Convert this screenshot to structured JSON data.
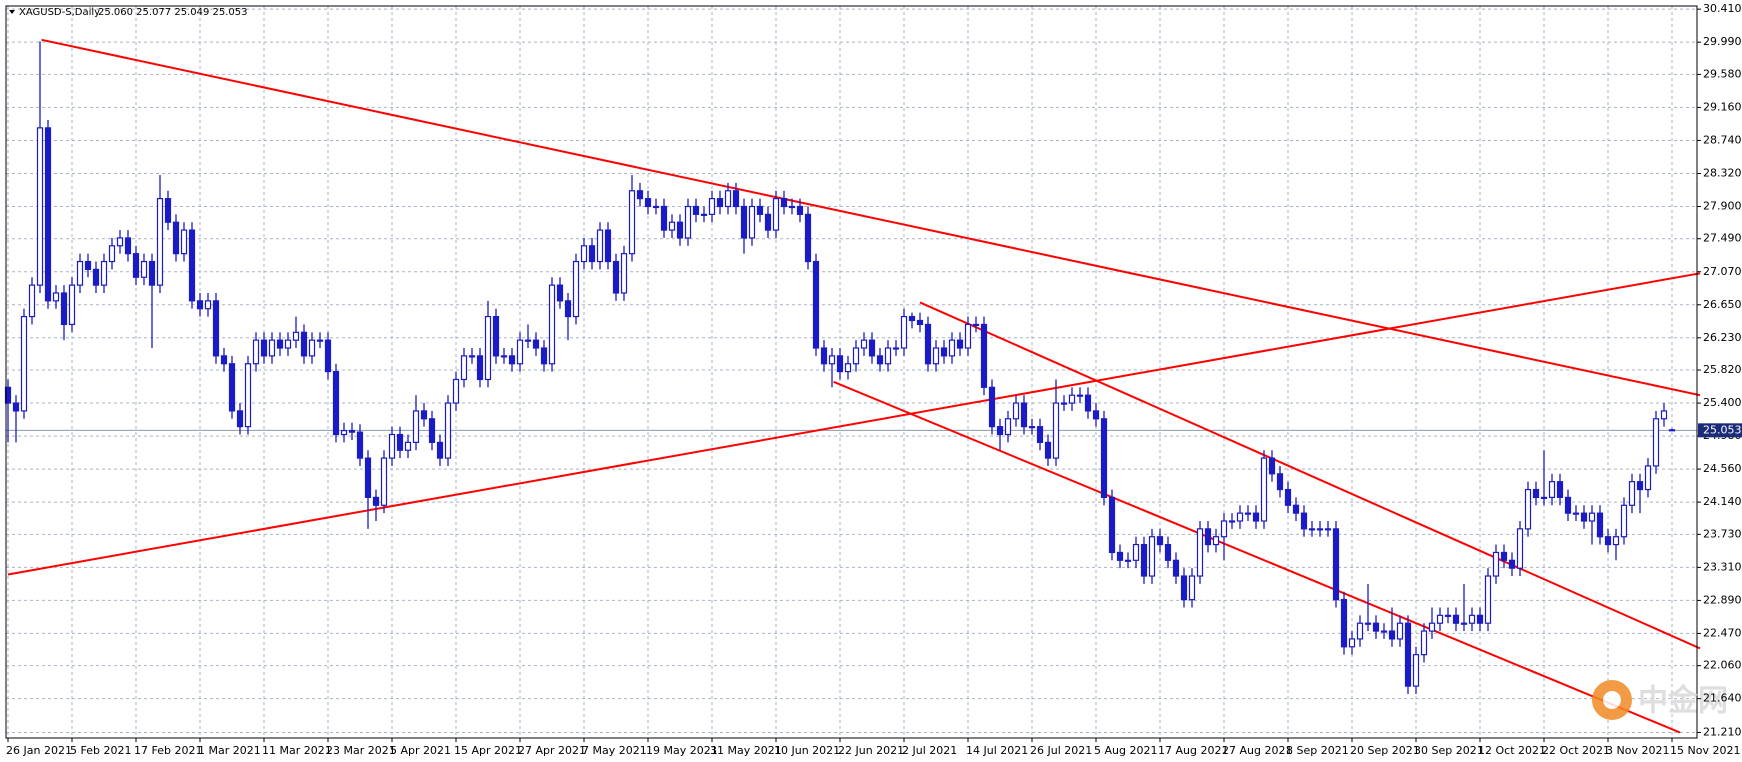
{
  "chart_data": {
    "type": "candlestick",
    "title": "XAGUSD-S,Daily",
    "subtitle": "25.060 25.077 25.049 25.053",
    "color": "#1b1bc6",
    "grid": true,
    "ylim": [
      21.14,
      30.45
    ],
    "yticks": [
      {
        "value": 30.41,
        "label": "30.410"
      },
      {
        "value": 29.99,
        "label": "29.990"
      },
      {
        "value": 29.58,
        "label": "29.580"
      },
      {
        "value": 29.16,
        "label": "29.160"
      },
      {
        "value": 28.74,
        "label": "28.740"
      },
      {
        "value": 28.32,
        "label": "28.320"
      },
      {
        "value": 27.9,
        "label": "27.900"
      },
      {
        "value": 27.49,
        "label": "27.490"
      },
      {
        "value": 27.07,
        "label": "27.070"
      },
      {
        "value": 26.65,
        "label": "26.650"
      },
      {
        "value": 26.23,
        "label": "26.230"
      },
      {
        "value": 25.82,
        "label": "25.820"
      },
      {
        "value": 25.4,
        "label": "25.400"
      },
      {
        "value": 24.98,
        "label": "24.980"
      },
      {
        "value": 24.56,
        "label": "24.560"
      },
      {
        "value": 24.14,
        "label": "24.140"
      },
      {
        "value": 23.73,
        "label": "23.730"
      },
      {
        "value": 23.31,
        "label": "23.310"
      },
      {
        "value": 22.89,
        "label": "22.890"
      },
      {
        "value": 22.47,
        "label": "22.470"
      },
      {
        "value": 22.06,
        "label": "22.060"
      },
      {
        "value": 21.64,
        "label": "21.640"
      },
      {
        "value": 21.21,
        "label": "21.210"
      }
    ],
    "last_price": {
      "value": 25.053,
      "label": "25.053",
      "color": "#8a9ab0"
    },
    "categories": [
      "26 Jan 2021",
      null,
      null,
      null,
      null,
      null,
      null,
      null,
      "5 Feb 2021",
      null,
      null,
      null,
      null,
      null,
      null,
      null,
      "17 Feb 2021",
      null,
      null,
      null,
      null,
      null,
      null,
      null,
      "1 Mar 2021",
      null,
      null,
      null,
      null,
      null,
      null,
      null,
      "11 Mar 2021",
      null,
      null,
      null,
      null,
      null,
      null,
      null,
      "23 Mar 2021",
      null,
      null,
      null,
      null,
      null,
      null,
      null,
      "5 Apr 2021",
      null,
      null,
      null,
      null,
      null,
      null,
      null,
      "15 Apr 2021",
      null,
      null,
      null,
      null,
      null,
      null,
      null,
      "27 Apr 2021",
      null,
      null,
      null,
      null,
      null,
      null,
      null,
      "7 May 2021",
      null,
      null,
      null,
      null,
      null,
      null,
      null,
      "19 May 2021",
      null,
      null,
      null,
      null,
      null,
      null,
      null,
      "31 May 2021",
      null,
      null,
      null,
      null,
      null,
      null,
      null,
      "10 Jun 2021",
      null,
      null,
      null,
      null,
      null,
      null,
      null,
      "22 Jun 2021",
      null,
      null,
      null,
      null,
      null,
      null,
      null,
      "2 Jul 2021",
      null,
      null,
      null,
      null,
      null,
      null,
      null,
      "14 Jul 2021",
      null,
      null,
      null,
      null,
      null,
      null,
      null,
      "26 Jul 2021",
      null,
      null,
      null,
      null,
      null,
      null,
      null,
      "5 Aug 2021",
      null,
      null,
      null,
      null,
      null,
      null,
      null,
      "17 Aug 2021",
      null,
      null,
      null,
      null,
      null,
      null,
      null,
      "27 Aug 2021",
      null,
      null,
      null,
      null,
      null,
      null,
      null,
      "8 Sep 2021",
      null,
      null,
      null,
      null,
      null,
      null,
      null,
      "20 Sep 2021",
      null,
      null,
      null,
      null,
      null,
      null,
      null,
      "30 Sep 2021",
      null,
      null,
      null,
      null,
      null,
      null,
      null,
      "12 Oct 2021",
      null,
      null,
      null,
      null,
      null,
      null,
      null,
      "22 Oct 2021",
      null,
      null,
      null,
      null,
      null,
      null,
      null,
      "3 Nov 2021",
      null,
      null,
      null,
      null,
      null,
      null,
      null,
      "15 Nov 2021"
    ],
    "open": [
      25.6,
      25.4,
      25.3,
      26.5,
      26.9,
      28.9,
      26.7,
      26.8,
      26.4,
      26.9,
      27.2,
      27.1,
      26.9,
      27.2,
      27.4,
      27.5,
      27.3,
      27.0,
      27.2,
      26.9,
      28.0,
      27.7,
      27.3,
      27.6,
      26.7,
      26.6,
      26.7,
      26.0,
      25.9,
      25.3,
      25.1,
      25.9,
      26.2,
      26.0,
      26.2,
      26.1,
      26.2,
      26.3,
      26.0,
      26.2,
      26.2,
      25.8,
      25.0,
      25.05,
      25.03,
      24.7,
      24.2,
      24.1,
      24.7,
      25.0,
      24.8,
      24.9,
      25.3,
      25.2,
      24.9,
      24.7,
      25.4,
      25.7,
      26.0,
      26.0,
      25.7,
      26.5,
      26.0,
      26.0,
      25.9,
      26.2,
      26.2,
      26.1,
      25.9,
      26.9,
      26.7,
      26.5,
      27.2,
      27.4,
      27.2,
      27.6,
      27.2,
      26.8,
      27.3,
      28.1,
      28.0,
      27.9,
      27.9,
      27.6,
      27.7,
      27.5,
      27.9,
      27.8,
      27.8,
      28.0,
      27.9,
      28.1,
      27.9,
      27.5,
      27.9,
      27.8,
      27.6,
      28.0,
      27.9,
      27.9,
      27.8,
      27.2,
      26.1,
      25.9,
      26.0,
      25.8,
      25.9,
      26.1,
      26.2,
      26.0,
      25.9,
      26.1,
      26.1,
      26.5,
      26.45,
      26.4,
      25.9,
      26.1,
      26.0,
      26.2,
      26.1,
      26.4,
      26.4,
      25.6,
      25.1,
      25.0,
      25.2,
      25.4,
      25.1,
      25.1,
      24.9,
      24.7,
      25.4,
      25.4,
      25.5,
      25.5,
      25.3,
      25.2,
      24.2,
      23.5,
      23.4,
      23.4,
      23.6,
      23.2,
      23.7,
      23.6,
      23.4,
      23.2,
      22.9,
      23.2,
      23.8,
      23.6,
      23.7,
      23.9,
      23.9,
      24.0,
      24.0,
      23.9,
      24.7,
      24.5,
      24.3,
      24.1,
      24.0,
      23.8,
      23.8,
      23.8,
      23.8,
      22.9,
      22.3,
      22.4,
      22.6,
      22.6,
      22.5,
      22.5,
      22.4,
      22.6,
      21.8,
      22.2,
      22.5,
      22.6,
      22.7,
      22.7,
      22.6,
      22.6,
      22.7,
      22.6,
      23.2,
      23.5,
      23.4,
      23.3,
      23.8,
      24.3,
      24.2,
      24.2,
      24.4,
      24.2,
      24.0,
      24.0,
      23.9,
      24.0,
      23.7,
      23.6,
      23.7,
      24.1,
      24.4,
      24.3,
      24.6,
      25.2,
      25.06
    ],
    "high": [
      25.7,
      25.5,
      26.6,
      27.0,
      30.0,
      29.0,
      26.9,
      26.9,
      27.0,
      27.3,
      27.3,
      27.2,
      27.3,
      27.5,
      27.6,
      27.6,
      27.4,
      27.3,
      27.3,
      28.3,
      28.1,
      27.8,
      27.7,
      27.7,
      26.8,
      26.8,
      26.8,
      26.1,
      26.0,
      25.4,
      26.0,
      26.3,
      26.3,
      26.3,
      26.3,
      26.3,
      26.5,
      26.4,
      26.3,
      26.3,
      26.3,
      25.9,
      25.15,
      25.15,
      25.13,
      24.8,
      24.3,
      24.8,
      25.1,
      25.1,
      25.0,
      25.5,
      25.4,
      25.3,
      25.0,
      25.5,
      25.8,
      26.1,
      26.1,
      26.1,
      26.7,
      26.6,
      26.1,
      26.1,
      26.3,
      26.4,
      26.3,
      26.2,
      27.0,
      27.0,
      26.8,
      27.3,
      27.5,
      27.5,
      27.7,
      27.7,
      27.3,
      27.4,
      28.3,
      28.2,
      28.1,
      28.0,
      28.0,
      27.8,
      27.8,
      28.0,
      28.0,
      27.9,
      28.1,
      28.1,
      28.2,
      28.2,
      28.0,
      28.0,
      28.0,
      27.9,
      28.1,
      28.1,
      28.0,
      28.0,
      27.9,
      27.3,
      26.2,
      26.1,
      26.1,
      26.0,
      26.2,
      26.3,
      26.3,
      26.1,
      26.2,
      26.2,
      26.6,
      26.55,
      26.55,
      26.5,
      26.2,
      26.2,
      26.3,
      26.3,
      26.5,
      26.5,
      26.5,
      25.7,
      25.2,
      25.3,
      25.5,
      25.5,
      25.2,
      25.2,
      25.0,
      25.7,
      25.5,
      25.6,
      25.6,
      25.6,
      25.4,
      25.3,
      24.3,
      23.6,
      23.5,
      23.7,
      23.7,
      23.8,
      23.8,
      23.7,
      23.5,
      23.3,
      23.3,
      23.9,
      23.9,
      23.8,
      24.0,
      24.0,
      24.1,
      24.1,
      24.1,
      24.8,
      24.8,
      24.6,
      24.4,
      24.2,
      24.1,
      23.9,
      23.9,
      23.9,
      23.9,
      23.0,
      22.5,
      22.7,
      23.1,
      22.7,
      22.6,
      22.8,
      22.7,
      22.7,
      22.3,
      22.6,
      22.8,
      22.8,
      22.8,
      22.8,
      23.1,
      22.8,
      22.8,
      23.3,
      23.6,
      23.6,
      23.5,
      23.9,
      24.4,
      24.4,
      24.8,
      24.5,
      24.5,
      24.3,
      24.1,
      24.1,
      24.1,
      24.1,
      23.8,
      23.8,
      24.2,
      24.5,
      24.5,
      24.7,
      25.3,
      25.4,
      25.077
    ],
    "low": [
      24.9,
      24.9,
      25.2,
      26.4,
      26.8,
      26.6,
      26.6,
      26.2,
      26.3,
      26.8,
      27.0,
      26.8,
      26.8,
      27.1,
      27.3,
      27.2,
      26.9,
      26.9,
      26.1,
      26.8,
      27.6,
      27.2,
      27.2,
      26.6,
      26.5,
      26.5,
      25.9,
      25.8,
      25.2,
      25.0,
      25.0,
      25.8,
      25.9,
      25.9,
      26.0,
      26.0,
      26.1,
      25.9,
      25.9,
      26.1,
      25.7,
      24.9,
      24.9,
      24.93,
      24.6,
      23.8,
      23.9,
      24.0,
      24.6,
      24.7,
      24.7,
      24.8,
      25.1,
      24.8,
      24.6,
      24.6,
      25.3,
      25.6,
      25.9,
      25.6,
      25.6,
      25.9,
      25.9,
      25.8,
      25.8,
      26.1,
      26.0,
      25.8,
      25.8,
      26.6,
      26.2,
      26.4,
      27.1,
      27.1,
      27.1,
      27.1,
      26.7,
      26.7,
      27.2,
      27.9,
      27.8,
      27.8,
      27.5,
      27.5,
      27.4,
      27.4,
      27.7,
      27.7,
      27.7,
      27.8,
      27.8,
      27.8,
      27.3,
      27.4,
      27.7,
      27.5,
      27.5,
      27.8,
      27.8,
      27.7,
      27.1,
      26.0,
      25.8,
      25.6,
      25.7,
      25.7,
      25.8,
      26.0,
      25.9,
      25.8,
      25.8,
      26.0,
      26.0,
      26.35,
      26.3,
      25.8,
      25.8,
      25.9,
      25.9,
      26.0,
      26.0,
      26.3,
      25.5,
      25.0,
      24.8,
      24.9,
      25.1,
      25.0,
      25.0,
      24.8,
      24.6,
      24.6,
      25.3,
      25.3,
      25.4,
      25.2,
      25.1,
      24.1,
      23.4,
      23.3,
      23.3,
      23.3,
      23.1,
      23.1,
      23.5,
      23.3,
      23.1,
      22.8,
      22.8,
      23.1,
      23.5,
      23.5,
      23.4,
      23.8,
      23.8,
      23.9,
      23.8,
      23.8,
      24.4,
      24.2,
      24.0,
      23.9,
      23.7,
      23.7,
      23.7,
      23.7,
      22.8,
      22.2,
      22.2,
      22.3,
      22.5,
      22.4,
      22.4,
      22.3,
      22.3,
      21.7,
      21.7,
      22.1,
      22.4,
      22.5,
      22.6,
      22.5,
      22.5,
      22.5,
      22.5,
      22.5,
      23.1,
      23.3,
      23.2,
      23.2,
      23.7,
      24.1,
      24.1,
      24.1,
      24.1,
      23.9,
      23.9,
      23.8,
      23.6,
      23.6,
      23.5,
      23.4,
      23.6,
      24.0,
      24.0,
      24.2,
      24.5,
      25.1,
      25.049
    ],
    "close": [
      25.4,
      25.3,
      26.5,
      26.9,
      28.9,
      26.7,
      26.8,
      26.4,
      26.9,
      27.2,
      27.1,
      26.9,
      27.2,
      27.4,
      27.5,
      27.3,
      27.0,
      27.2,
      26.9,
      28.0,
      27.7,
      27.3,
      27.6,
      26.7,
      26.6,
      26.7,
      26.0,
      25.9,
      25.3,
      25.1,
      25.9,
      26.2,
      26.0,
      26.2,
      26.1,
      26.2,
      26.3,
      26.0,
      26.2,
      26.2,
      25.8,
      25.0,
      25.05,
      25.03,
      24.7,
      24.2,
      24.1,
      24.7,
      25.0,
      24.8,
      24.9,
      25.3,
      25.2,
      24.9,
      24.7,
      25.4,
      25.7,
      26.0,
      26.0,
      25.7,
      26.5,
      26.0,
      26.0,
      25.9,
      26.2,
      26.2,
      26.1,
      25.9,
      26.9,
      26.7,
      26.5,
      27.2,
      27.4,
      27.2,
      27.6,
      27.2,
      26.8,
      27.3,
      28.1,
      28.0,
      27.9,
      27.9,
      27.6,
      27.7,
      27.5,
      27.9,
      27.8,
      27.8,
      28.0,
      27.9,
      28.1,
      27.9,
      27.5,
      27.9,
      27.8,
      27.6,
      28.0,
      27.9,
      27.9,
      27.8,
      27.2,
      26.1,
      25.9,
      26.0,
      25.8,
      25.9,
      26.1,
      26.2,
      26.0,
      25.9,
      26.1,
      26.1,
      26.5,
      26.45,
      26.4,
      25.9,
      26.1,
      26.0,
      26.2,
      26.1,
      26.4,
      26.4,
      25.6,
      25.1,
      25.0,
      25.2,
      25.4,
      25.1,
      25.1,
      24.9,
      24.7,
      25.4,
      25.4,
      25.5,
      25.5,
      25.3,
      25.2,
      24.2,
      23.5,
      23.4,
      23.4,
      23.6,
      23.2,
      23.7,
      23.6,
      23.4,
      23.2,
      22.9,
      23.2,
      23.8,
      23.6,
      23.7,
      23.9,
      23.9,
      24.0,
      24.0,
      23.9,
      24.7,
      24.5,
      24.3,
      24.1,
      24.0,
      23.8,
      23.8,
      23.8,
      23.8,
      22.9,
      22.3,
      22.4,
      22.6,
      22.6,
      22.5,
      22.5,
      22.4,
      22.6,
      21.8,
      22.2,
      22.5,
      22.6,
      22.7,
      22.7,
      22.6,
      22.6,
      22.7,
      22.6,
      23.2,
      23.5,
      23.4,
      23.3,
      23.8,
      24.3,
      24.2,
      24.2,
      24.4,
      24.2,
      24.0,
      24.0,
      23.9,
      24.0,
      23.7,
      23.6,
      23.7,
      24.1,
      24.4,
      24.3,
      24.6,
      25.2,
      25.3,
      25.053
    ],
    "trendlines": [
      {
        "color": "#ff0000",
        "x": [
          4.2,
          211.5
        ],
        "y": [
          30.02,
          25.5
        ]
      },
      {
        "color": "#ff0000",
        "x": [
          0,
          211.5
        ],
        "y": [
          23.22,
          27.05
        ]
      },
      {
        "color": "#ff0000",
        "x": [
          114,
          211.5
        ],
        "y": [
          26.68,
          22.28
        ]
      },
      {
        "color": "#ff0000",
        "x": [
          103.2,
          209
        ],
        "y": [
          25.67,
          21.21
        ]
      }
    ],
    "watermark": "中金网"
  }
}
